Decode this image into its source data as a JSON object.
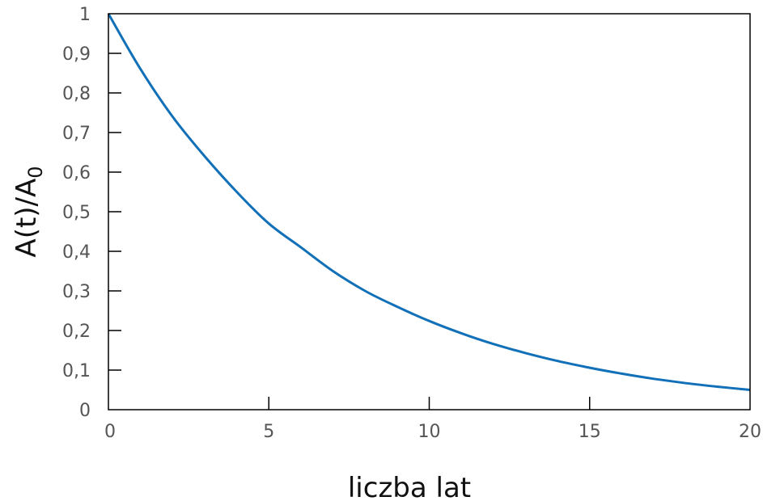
{
  "chart_data": {
    "type": "line",
    "xlabel": "liczba lat",
    "ylabel_main": "A(t)/A",
    "ylabel_subscript": "0",
    "xlim": [
      0,
      20
    ],
    "ylim": [
      0,
      1
    ],
    "x_ticks": [
      0,
      5,
      10,
      15,
      20
    ],
    "x_tick_labels": [
      "0",
      "5",
      "10",
      "15",
      "20"
    ],
    "y_ticks": [
      0,
      0.1,
      0.2,
      0.3,
      0.4,
      0.5,
      0.6,
      0.7,
      0.8,
      0.9,
      1
    ],
    "y_tick_labels": [
      "0",
      "0,1",
      "0,2",
      "0,3",
      "0,4",
      "0,5",
      "0,6",
      "0,7",
      "0,8",
      "0,9",
      "1"
    ],
    "grid": false,
    "legend": false,
    "line_color": "#1170b8",
    "series": [
      {
        "x": [
          0,
          1,
          2,
          3,
          4,
          5,
          6,
          7,
          8,
          9,
          10,
          11,
          12,
          13,
          14,
          15,
          16,
          17,
          18,
          19,
          20
        ],
        "values": [
          1.0,
          0.86,
          0.74,
          0.64,
          0.55,
          0.47,
          0.41,
          0.35,
          0.3,
          0.26,
          0.224,
          0.193,
          0.166,
          0.143,
          0.123,
          0.106,
          0.091,
          0.078,
          0.067,
          0.058,
          0.05
        ]
      }
    ]
  }
}
